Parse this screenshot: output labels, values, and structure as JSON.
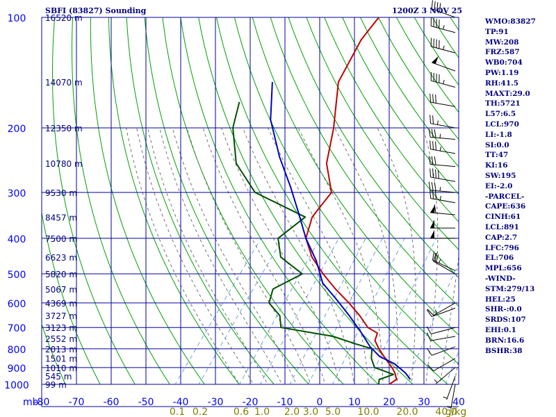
{
  "header": {
    "station": "SBFI (83827) Sounding",
    "time": "1200Z  3 NOV 25"
  },
  "stats": [
    "WMO:83827",
    "TP:91",
    "MW:208",
    "FRZ:587",
    "WB0:704",
    "PW:1.19",
    "RH:41.5",
    "MAXT:29.0",
    "TH:5721",
    "L57:6.5",
    "LCL:970",
    "LI:-1.8",
    "SI:0.0",
    "TT:47",
    "KI:16",
    "SW:195",
    "EI:-2.0",
    "-PARCEL-",
    "CAPE:636",
    "CINH:61",
    "LCL:891",
    "CAP:2.7",
    "LFC:796",
    "EL:706",
    "MPL:656",
    "-WIND-",
    "STM:279/13",
    "HEL:25",
    "SHR-:0.0",
    "SRDS:107",
    "EHI:0.1",
    "BRN:16.6",
    "BSHR:38"
  ],
  "colors": {
    "grid": "#0000a0",
    "axis_text": "#0000ff",
    "temperature": "#c00000",
    "dewpoint": "#005000",
    "parcel": "#0000c0",
    "dry_adiabat": "#00a000",
    "moist_adiabat": "#707070",
    "mixing_ratio": "#6aa0e0",
    "header_text": "#000080",
    "mixing_label": "#808000"
  },
  "chart_data": {
    "type": "line",
    "title": "SBFI (83827) Sounding",
    "xlabel": "",
    "ylabel": "mb",
    "xlim": [
      -80,
      40
    ],
    "ylim": [
      1000,
      100
    ],
    "y_scale": "log",
    "grid": true,
    "x_ticks": [
      "-80",
      "-70",
      "-60",
      "-50",
      "-40",
      "-30",
      "-20",
      "-10",
      "0",
      "10",
      "20",
      "30",
      "40"
    ],
    "y_ticks": [
      "100",
      "200",
      "300",
      "400",
      "500",
      "600",
      "700",
      "800",
      "900",
      "1000"
    ],
    "height_labels": [
      {
        "p": 100,
        "label": "16520 m"
      },
      {
        "p": 150,
        "label": "14070 m"
      },
      {
        "p": 200,
        "label": "12350 m"
      },
      {
        "p": 250,
        "label": "10780 m"
      },
      {
        "p": 300,
        "label": "9530 m"
      },
      {
        "p": 350,
        "label": "8457 m"
      },
      {
        "p": 400,
        "label": "7500 m"
      },
      {
        "p": 450,
        "label": "6623 m"
      },
      {
        "p": 500,
        "label": "5820 m"
      },
      {
        "p": 550,
        "label": "5067 m"
      },
      {
        "p": 600,
        "label": "4369 m"
      },
      {
        "p": 650,
        "label": "3727 m"
      },
      {
        "p": 700,
        "label": "3123 m"
      },
      {
        "p": 750,
        "label": "2552 m"
      },
      {
        "p": 800,
        "label": "2013 m"
      },
      {
        "p": 850,
        "label": "1501 m"
      },
      {
        "p": 900,
        "label": "1010 m"
      },
      {
        "p": 950,
        "label": "545 m"
      },
      {
        "p": 1000,
        "label": "99 m"
      }
    ],
    "mixing_ratio_labels": [
      "0.1",
      "0.2",
      "0.6",
      "1.0",
      "2.0",
      "3.0",
      "5.0",
      "10.0",
      "20.0",
      "40.0",
      "g/kg"
    ],
    "series": [
      {
        "values": [
          [
            20,
            1000
          ],
          [
            21,
            970
          ],
          [
            19,
            930
          ],
          [
            17,
            900
          ],
          [
            13,
            850
          ],
          [
            9,
            800
          ],
          [
            6,
            760
          ],
          [
            5,
            725
          ],
          [
            1,
            700
          ],
          [
            -4,
            650
          ],
          [
            -10,
            600
          ],
          [
            -17,
            550
          ],
          [
            -24,
            500
          ],
          [
            -31,
            450
          ],
          [
            -37,
            400
          ],
          [
            -40,
            350
          ],
          [
            -40,
            300
          ],
          [
            -48,
            250
          ],
          [
            -54,
            200
          ],
          [
            -63,
            150
          ],
          [
            -66,
            115
          ],
          [
            -66,
            100
          ]
        ]
      },
      {
        "values": [
          [
            17,
            1000
          ],
          [
            16,
            970
          ],
          [
            19,
            940
          ],
          [
            12,
            900
          ],
          [
            9,
            850
          ],
          [
            7,
            800
          ],
          [
            1,
            775
          ],
          [
            -7,
            740
          ],
          [
            -24,
            700
          ],
          [
            -27,
            650
          ],
          [
            -33,
            600
          ],
          [
            -35,
            550
          ],
          [
            -30,
            500
          ],
          [
            -40,
            450
          ],
          [
            -45,
            400
          ],
          [
            -42,
            350
          ],
          [
            -62,
            300
          ],
          [
            -74,
            250
          ],
          [
            -83,
            200
          ],
          [
            -87,
            170
          ]
        ]
      },
      {
        "values": [
          [
            25,
            970
          ],
          [
            22,
            930
          ],
          [
            17,
            880
          ],
          [
            11,
            840
          ],
          [
            6,
            790
          ],
          [
            0,
            720
          ],
          [
            -7,
            650
          ],
          [
            -14,
            590
          ],
          [
            -22,
            530
          ],
          [
            -29,
            460
          ],
          [
            -37,
            400
          ],
          [
            -45,
            340
          ],
          [
            -53,
            290
          ],
          [
            -63,
            240
          ],
          [
            -74,
            190
          ],
          [
            -82,
            150
          ]
        ]
      }
    ],
    "winds": [
      {
        "p": 100,
        "dir": 290,
        "spd": 40
      },
      {
        "p": 110,
        "dir": 285,
        "spd": 45
      },
      {
        "p": 125,
        "dir": 285,
        "spd": 45
      },
      {
        "p": 140,
        "dir": 290,
        "spd": 50
      },
      {
        "p": 155,
        "dir": 285,
        "spd": 45
      },
      {
        "p": 175,
        "dir": 280,
        "spd": 30
      },
      {
        "p": 200,
        "dir": 280,
        "spd": 25
      },
      {
        "p": 215,
        "dir": 275,
        "spd": 35
      },
      {
        "p": 235,
        "dir": 280,
        "spd": 35
      },
      {
        "p": 255,
        "dir": 275,
        "spd": 30
      },
      {
        "p": 280,
        "dir": 280,
        "spd": 40
      },
      {
        "p": 300,
        "dir": 275,
        "spd": 35
      },
      {
        "p": 320,
        "dir": 280,
        "spd": 35
      },
      {
        "p": 345,
        "dir": 275,
        "spd": 60
      },
      {
        "p": 375,
        "dir": 270,
        "spd": 50
      },
      {
        "p": 400,
        "dir": 270,
        "spd": 50
      },
      {
        "p": 490,
        "dir": 295,
        "spd": 25
      },
      {
        "p": 500,
        "dir": 300,
        "spd": 20
      },
      {
        "p": 600,
        "dir": 240,
        "spd": 15
      },
      {
        "p": 620,
        "dir": 250,
        "spd": 10
      },
      {
        "p": 700,
        "dir": 255,
        "spd": 10
      },
      {
        "p": 740,
        "dir": 260,
        "spd": 10
      },
      {
        "p": 790,
        "dir": 250,
        "spd": 10
      },
      {
        "p": 850,
        "dir": 240,
        "spd": 10
      },
      {
        "p": 900,
        "dir": 230,
        "spd": 5
      },
      {
        "p": 950,
        "dir": 200,
        "spd": 5
      },
      {
        "p": 1000,
        "dir": 190,
        "spd": 5
      }
    ]
  }
}
